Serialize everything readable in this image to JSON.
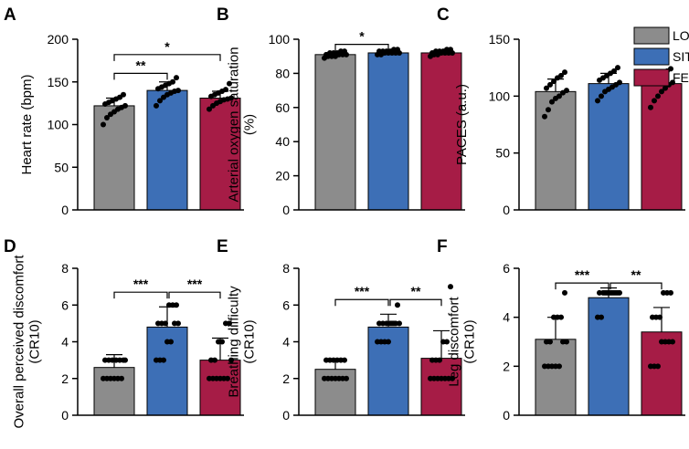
{
  "colors": {
    "LOW": "#8c8c8c",
    "SIT": "#3d6fb6",
    "FEX": "#a61c46"
  },
  "legend": [
    "LOW",
    "SIT",
    "FEX"
  ],
  "chart_data": [
    {
      "letter": "A",
      "type": "bar",
      "ylabel": [
        "Heart rate (bpm)"
      ],
      "ylim": [
        0,
        200
      ],
      "ticks": [
        0,
        50,
        100,
        150,
        200
      ],
      "categories": [
        "LOW",
        "SIT",
        "FEX"
      ],
      "values": [
        122,
        140,
        131
      ],
      "sd": [
        9,
        10,
        8
      ],
      "points": [
        [
          100,
          108,
          112,
          115,
          118,
          120,
          122,
          124,
          126,
          128,
          130,
          132,
          135
        ],
        [
          122,
          128,
          132,
          135,
          137,
          139,
          140,
          142,
          144,
          146,
          148,
          150,
          155
        ],
        [
          118,
          122,
          125,
          127,
          129,
          130,
          131,
          133,
          135,
          137,
          139,
          141,
          148
        ]
      ],
      "significance": [
        {
          "from": 0,
          "to": 1,
          "label": "**",
          "y": 160
        },
        {
          "from": 0,
          "to": 2,
          "label": "*",
          "y": 182
        }
      ]
    },
    {
      "letter": "B",
      "type": "bar",
      "ylabel": [
        "Arterial oxygen saturation",
        "(%)"
      ],
      "ylim": [
        0,
        100
      ],
      "ticks": [
        0,
        20,
        40,
        60,
        80,
        100
      ],
      "categories": [
        "LOW",
        "SIT",
        "FEX"
      ],
      "values": [
        91,
        92,
        92
      ],
      "sd": [
        1,
        1,
        1
      ],
      "points": [
        [
          89,
          90,
          90,
          90,
          91,
          91,
          91,
          91,
          92,
          92,
          92,
          93,
          93
        ],
        [
          91,
          91,
          92,
          92,
          92,
          92,
          92,
          93,
          93,
          93,
          93,
          94,
          94
        ],
        [
          90,
          91,
          91,
          92,
          92,
          92,
          92,
          92,
          93,
          93,
          93,
          94,
          94
        ]
      ],
      "significance": [
        {
          "from": 0,
          "to": 1,
          "label": "*",
          "y": 97
        }
      ]
    },
    {
      "letter": "C",
      "type": "bar",
      "ylabel": [
        "PACES (a.u.)"
      ],
      "ylim": [
        0,
        150
      ],
      "ticks": [
        0,
        50,
        100,
        150
      ],
      "categories": [
        "LOW",
        "SIT",
        "FEX"
      ],
      "values": [
        104,
        111,
        111
      ],
      "sd": [
        11,
        9,
        11
      ],
      "points": [
        [
          82,
          88,
          95,
          98,
          100,
          103,
          105,
          107,
          110,
          113,
          116,
          118,
          121
        ],
        [
          96,
          100,
          104,
          106,
          108,
          110,
          112,
          114,
          116,
          118,
          120,
          122,
          125
        ],
        [
          90,
          96,
          100,
          104,
          107,
          110,
          112,
          114,
          116,
          118,
          120,
          122,
          124
        ]
      ],
      "significance": []
    },
    {
      "letter": "D",
      "type": "bar",
      "ylabel": [
        "Overall perceived discomfort",
        "(CR10)"
      ],
      "ylim": [
        0,
        8
      ],
      "ticks": [
        0,
        2,
        4,
        6,
        8
      ],
      "categories": [
        "LOW",
        "SIT",
        "FEX"
      ],
      "values": [
        2.6,
        4.8,
        3.0
      ],
      "sd": [
        0.7,
        1.1,
        1.2
      ],
      "points": [
        [
          2,
          2,
          2,
          2,
          2,
          2,
          3,
          3,
          3,
          3,
          3,
          3,
          3
        ],
        [
          3,
          3,
          3,
          4,
          4,
          5,
          5,
          5,
          5,
          5,
          6,
          6,
          6
        ],
        [
          2,
          2,
          2,
          2,
          2,
          2,
          3,
          3,
          3,
          4,
          4,
          5,
          5
        ]
      ],
      "significance": [
        {
          "from": 0,
          "to": 1,
          "label": "***",
          "y": 6.7
        },
        {
          "from": 1,
          "to": 2,
          "label": "***",
          "y": 6.7
        }
      ]
    },
    {
      "letter": "E",
      "type": "bar",
      "ylabel": [
        "Breathing difficulty",
        "(CR10)"
      ],
      "ylim": [
        0,
        8
      ],
      "ticks": [
        0,
        2,
        4,
        6,
        8
      ],
      "categories": [
        "LOW",
        "SIT",
        "FEX"
      ],
      "values": [
        2.5,
        4.8,
        3.1
      ],
      "sd": [
        0.5,
        0.7,
        1.5
      ],
      "points": [
        [
          2,
          2,
          2,
          2,
          2,
          2,
          2,
          3,
          3,
          3,
          3,
          3,
          3
        ],
        [
          4,
          4,
          4,
          4,
          5,
          5,
          5,
          5,
          5,
          5,
          5,
          5,
          6
        ],
        [
          2,
          2,
          2,
          2,
          2,
          2,
          2,
          3,
          3,
          3,
          4,
          4,
          7
        ]
      ],
      "significance": [
        {
          "from": 0,
          "to": 1,
          "label": "***",
          "y": 6.3
        },
        {
          "from": 1,
          "to": 2,
          "label": "**",
          "y": 6.3
        }
      ]
    },
    {
      "letter": "F",
      "type": "bar",
      "ylabel": [
        "Leg discomfort",
        "(CR10)"
      ],
      "ylim": [
        0,
        6
      ],
      "ticks": [
        0,
        2,
        4,
        6
      ],
      "categories": [
        "LOW",
        "SIT",
        "FEX"
      ],
      "values": [
        3.1,
        4.8,
        3.4
      ],
      "sd": [
        0.9,
        0.4,
        1.0
      ],
      "points": [
        [
          2,
          2,
          2,
          2,
          2,
          3,
          3,
          3,
          3,
          4,
          4,
          4,
          5
        ],
        [
          4,
          4,
          5,
          5,
          5,
          5,
          5,
          5,
          5,
          5,
          5,
          5,
          5
        ],
        [
          2,
          2,
          2,
          3,
          3,
          3,
          3,
          4,
          4,
          4,
          5,
          5,
          5
        ]
      ],
      "significance": [
        {
          "from": 0,
          "to": 1,
          "label": "***",
          "y": 5.4
        },
        {
          "from": 1,
          "to": 2,
          "label": "**",
          "y": 5.4
        }
      ]
    }
  ]
}
